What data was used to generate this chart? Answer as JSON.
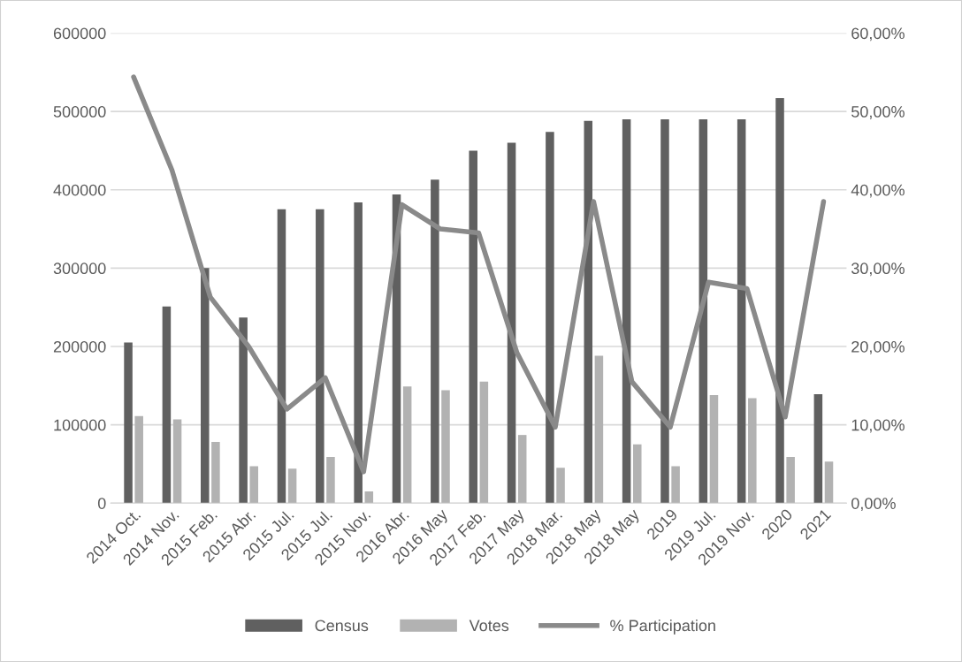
{
  "chart_data": {
    "type": "bar",
    "categories": [
      "2014 Oct.",
      "2014 Nov.",
      "2015 Feb.",
      "2015 Abr.",
      "2015 Jul.",
      "2015 Jul.",
      "2015 Nov.",
      "2016 Abr.",
      "2016 May",
      "2017 Feb.",
      "2017 May",
      "2018 Mar.",
      "2018 May",
      "2018 May",
      "2019",
      "2019 Jul.",
      "2019 Nov.",
      "2020",
      "2021"
    ],
    "series": [
      {
        "name": "Census",
        "color": "#606060",
        "values": [
          205000,
          251000,
          300000,
          237000,
          375000,
          375000,
          384000,
          394000,
          413000,
          450000,
          460000,
          474000,
          488000,
          490000,
          490000,
          490000,
          490000,
          517000,
          139000
        ]
      },
      {
        "name": "Votes",
        "color": "#b2b2b2",
        "values": [
          111000,
          107000,
          78000,
          47000,
          44000,
          59000,
          15000,
          149000,
          144000,
          155000,
          87000,
          45000,
          188000,
          75000,
          47000,
          138000,
          134000,
          59000,
          53000
        ]
      },
      {
        "name": "% Participation",
        "type": "line",
        "axis": "y2",
        "color": "#8a8a8a",
        "values": [
          54.4,
          42.5,
          26.3,
          20.0,
          12.0,
          16.0,
          4.0,
          38.1,
          35.0,
          34.5,
          19.2,
          9.7,
          38.5,
          15.5,
          9.7,
          28.2,
          27.4,
          11.0,
          38.5
        ]
      }
    ],
    "ylim": [
      0,
      600000
    ],
    "yticks": [
      0,
      100000,
      200000,
      300000,
      400000,
      500000,
      600000
    ],
    "y2lim": [
      0,
      60
    ],
    "y2ticks": [
      {
        "value": 0,
        "label": "0,00%"
      },
      {
        "value": 10,
        "label": "10,00%"
      },
      {
        "value": 20,
        "label": "20,00%"
      },
      {
        "value": 30,
        "label": "30,00%"
      },
      {
        "value": 40,
        "label": "40,00%"
      },
      {
        "value": 50,
        "label": "50,00%"
      },
      {
        "value": 60,
        "label": "60,00%"
      }
    ],
    "grid": "y",
    "legend": "bottom",
    "marker": "none",
    "line_style": "solid"
  }
}
